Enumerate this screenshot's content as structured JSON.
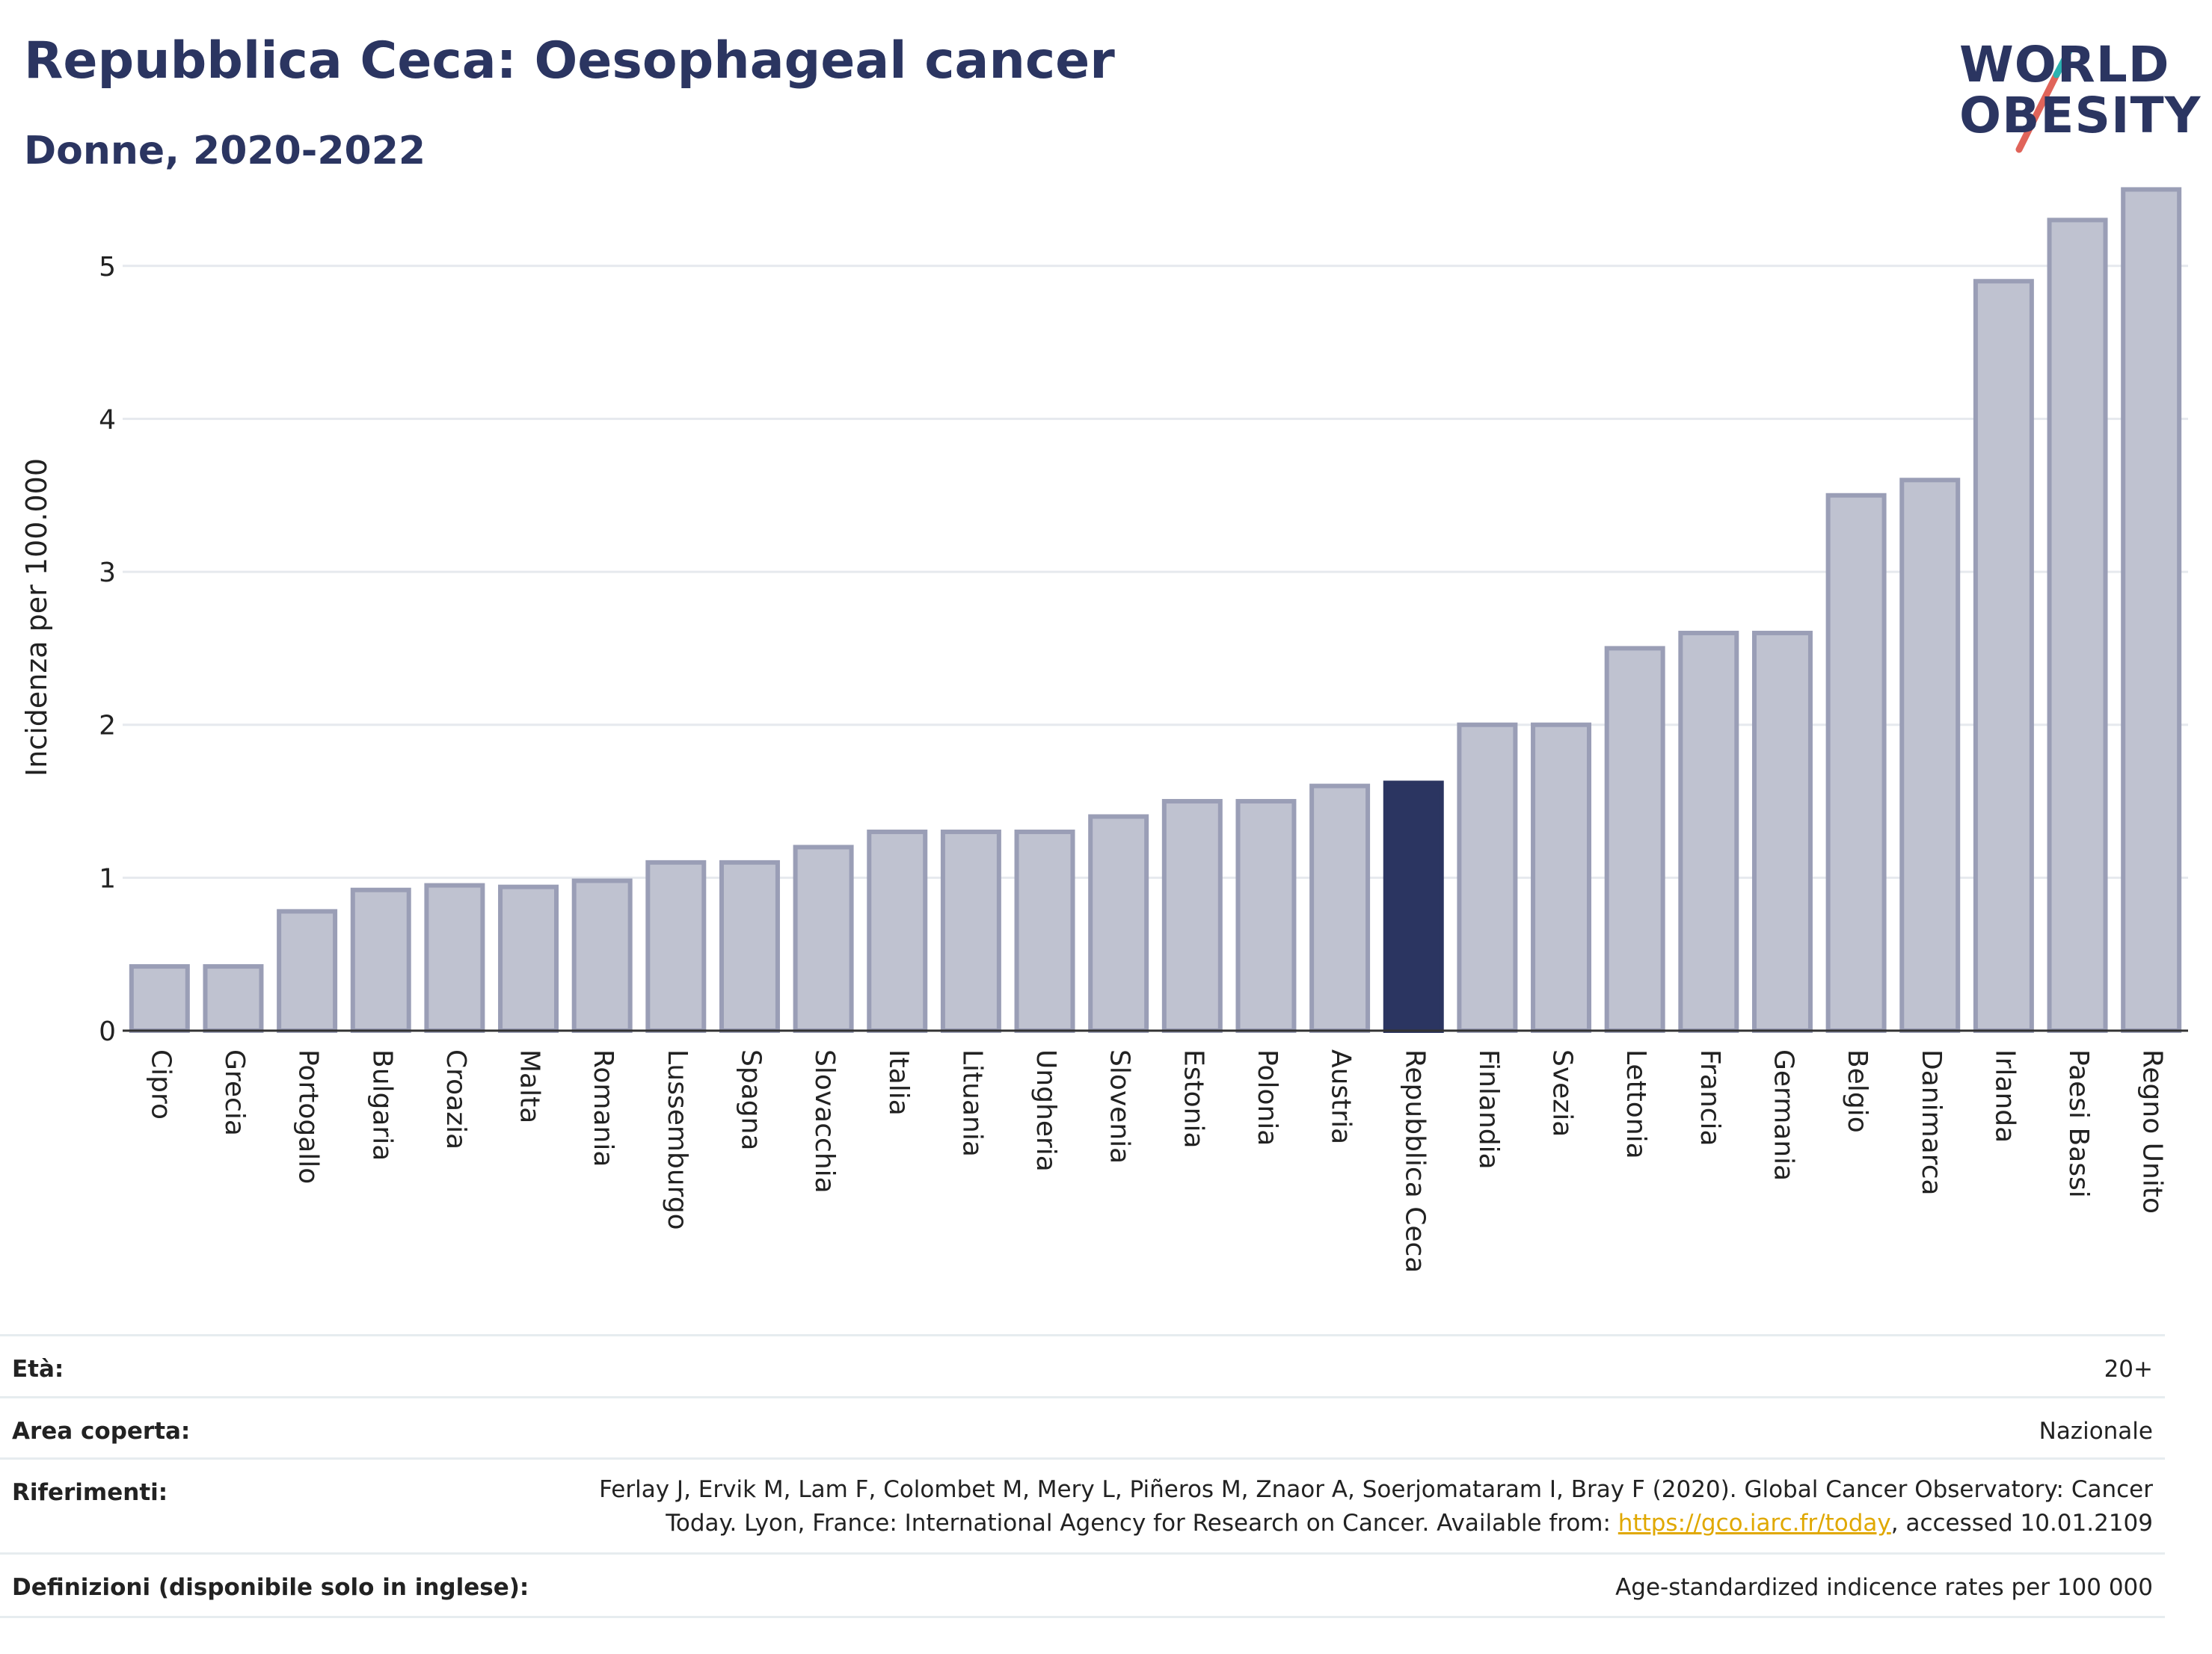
{
  "header": {
    "title": "Repubblica Ceca: Oesophageal cancer",
    "subtitle": "Donne, 2020-2022"
  },
  "logo": {
    "line1": "WORLD",
    "line2": "OBESITY",
    "accent_teal": "#2bb3b1",
    "accent_coral": "#e0645a"
  },
  "chart_data": {
    "type": "bar",
    "ylabel": "Incidenza per 100.000",
    "xlabel": "",
    "ylim": [
      0,
      5.6
    ],
    "yticks": [
      0,
      1,
      2,
      3,
      4,
      5
    ],
    "grid": true,
    "highlight": "Repubblica Ceca",
    "colors": {
      "bar": "#bfc2d0",
      "bar_edge": "#9a9eb6",
      "highlight": "#2b3561"
    },
    "categories": [
      "Cipro",
      "Grecia",
      "Portogallo",
      "Bulgaria",
      "Croazia",
      "Malta",
      "Romania",
      "Lussemburgo",
      "Spagna",
      "Slovacchia",
      "Italia",
      "Lituania",
      "Ungheria",
      "Slovenia",
      "Estonia",
      "Polonia",
      "Austria",
      "Repubblica Ceca",
      "Finlandia",
      "Svezia",
      "Lettonia",
      "Francia",
      "Germania",
      "Belgio",
      "Danimarca",
      "Irlanda",
      "Paesi Bassi",
      "Regno Unito"
    ],
    "values": [
      0.42,
      0.42,
      0.78,
      0.92,
      0.95,
      0.94,
      0.98,
      1.1,
      1.1,
      1.2,
      1.3,
      1.3,
      1.3,
      1.4,
      1.5,
      1.5,
      1.6,
      1.62,
      2.0,
      2.0,
      2.5,
      2.6,
      2.6,
      3.5,
      3.6,
      4.9,
      5.3,
      5.5
    ]
  },
  "meta": {
    "age_label": "Età:",
    "age_value": "20+",
    "area_label": "Area coperta:",
    "area_value": "Nazionale",
    "refs_label": "Riferimenti:",
    "refs_line1": "Ferlay J, Ervik M, Lam F, Colombet M, Mery L, Piñeros M, Znaor A, Soerjomataram I, Bray F (2020). Global Cancer Observatory: Cancer",
    "refs_line2_pre": "Today. Lyon, France: International Agency for Research on Cancer. Available from: ",
    "refs_link": "https://gco.iarc.fr/today",
    "refs_line2_post": ", accessed 10.01.2109",
    "defs_label": "Definizioni (disponibile solo in inglese):",
    "defs_value": "Age-standardized indicence rates per 100 000"
  }
}
